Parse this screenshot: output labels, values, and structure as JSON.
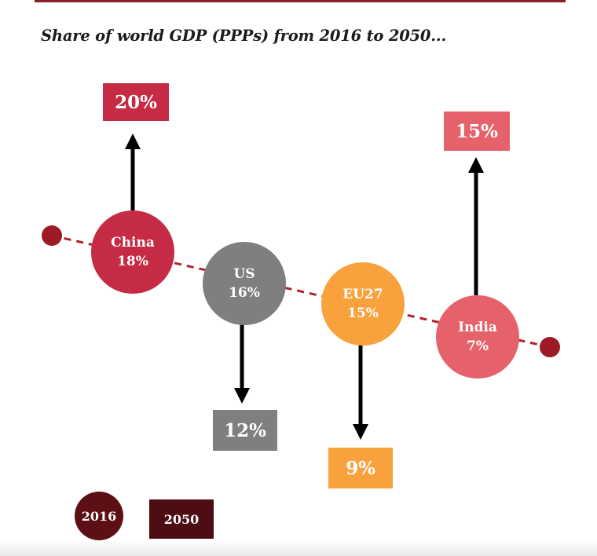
{
  "title": "Share of world GDP (PPPs) from 2016 to 2050...",
  "colors": {
    "china": "#c52b44",
    "us": "#7f7f7f",
    "eu27": "#f9a13c",
    "india": "#e6626a",
    "line": "#b31f2e",
    "endpoint": "#9c1b25",
    "arrow": "#000000",
    "legend_2016": "#5c0f14",
    "legend_2050": "#4d0d12"
  },
  "regions": [
    {
      "id": "china",
      "name": "China",
      "share_2016": "18%",
      "share_2050": "20%",
      "direction": "up"
    },
    {
      "id": "us",
      "name": "US",
      "share_2016": "16%",
      "share_2050": "12%",
      "direction": "down"
    },
    {
      "id": "eu27",
      "name": "EU27",
      "share_2016": "15%",
      "share_2050": "9%",
      "direction": "down"
    },
    {
      "id": "india",
      "name": "India",
      "share_2016": "7%",
      "share_2050": "15%",
      "direction": "up"
    }
  ],
  "legend": {
    "label_2016": "2016",
    "label_2050": "2050"
  }
}
